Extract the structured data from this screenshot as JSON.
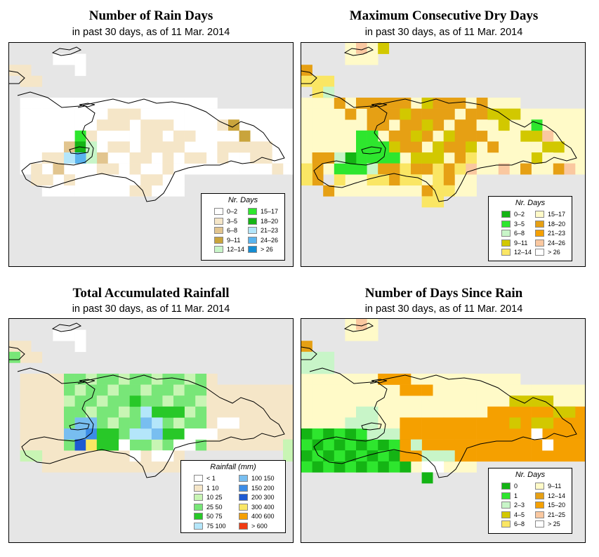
{
  "panels": [
    {
      "title": "Number of Rain Days",
      "subtitle": "in past 30 days, as of  11 Mar. 2014",
      "legend_title": "Nr. Days",
      "legend": [
        {
          "label": "0–2",
          "color": "#ffffff"
        },
        {
          "label": "3–5",
          "color": "#f5e6c8"
        },
        {
          "label": "6–8",
          "color": "#e2c58f"
        },
        {
          "label": "9–11",
          "color": "#c9a43c"
        },
        {
          "label": "12–14",
          "color": "#c8f5c8"
        },
        {
          "label": "15–17",
          "color": "#2ee62e"
        },
        {
          "label": "18–20",
          "color": "#14b414"
        },
        {
          "label": "21–23",
          "color": "#b4e6fa"
        },
        {
          "label": "24–26",
          "color": "#5ab4ee"
        },
        {
          "label": "> 26",
          "color": "#148cd2"
        }
      ]
    },
    {
      "title": "Maximum Consecutive Dry Days",
      "subtitle": "in past 30 days, as of  11 Mar. 2014",
      "legend_title": "Nr. Days",
      "legend": [
        {
          "label": "0–2",
          "color": "#14b414"
        },
        {
          "label": "3–5",
          "color": "#2ee62e"
        },
        {
          "label": "6–8",
          "color": "#c8f5c8"
        },
        {
          "label": "9–11",
          "color": "#d2c800"
        },
        {
          "label": "12–14",
          "color": "#fae664"
        },
        {
          "label": "15–17",
          "color": "#fffac8"
        },
        {
          "label": "18–20",
          "color": "#e6a014"
        },
        {
          "label": "21–23",
          "color": "#f5a000"
        },
        {
          "label": "24–26",
          "color": "#fac8a0"
        },
        {
          "label": "> 26",
          "color": "#ffffff"
        }
      ]
    },
    {
      "title": "Total Accumulated Rainfall",
      "subtitle": "in past 30 days, as of  11 Mar. 2014",
      "legend_title": "Rainfall (mm)",
      "legend": [
        {
          "label": "< 1",
          "color": "#ffffff"
        },
        {
          "label": "1    10",
          "color": "#f5e6c8"
        },
        {
          "label": "10    25",
          "color": "#c8f5b4"
        },
        {
          "label": "25    50",
          "color": "#78e678"
        },
        {
          "label": "50    75",
          "color": "#28c828"
        },
        {
          "label": "75  100",
          "color": "#b4e6fa"
        },
        {
          "label": "100  150",
          "color": "#78bef0"
        },
        {
          "label": "150  200",
          "color": "#3c8ce6"
        },
        {
          "label": "200  300",
          "color": "#1e5ad2"
        },
        {
          "label": "300  400",
          "color": "#fae664"
        },
        {
          "label": "400  600",
          "color": "#f5a000"
        },
        {
          "label": "> 600",
          "color": "#f03c14"
        }
      ]
    },
    {
      "title": "Number of Days Since Rain",
      "subtitle": "in past 30 days, as of  11 Mar. 2014",
      "legend_title": "Nr. Days",
      "legend": [
        {
          "label": "0",
          "color": "#14b414"
        },
        {
          "label": "1",
          "color": "#2ee62e"
        },
        {
          "label": "2–3",
          "color": "#c8f5c8"
        },
        {
          "label": "4–5",
          "color": "#d2c800"
        },
        {
          "label": "6–8",
          "color": "#fae664"
        },
        {
          "label": "9–11",
          "color": "#fffac8"
        },
        {
          "label": "12–14",
          "color": "#e6a014"
        },
        {
          "label": "15–20",
          "color": "#f5a000"
        },
        {
          "label": "21–25",
          "color": "#fac8a0"
        },
        {
          "label": "> 25",
          "color": "#ffffff"
        }
      ]
    }
  ],
  "map_background": "#e6e6e6"
}
